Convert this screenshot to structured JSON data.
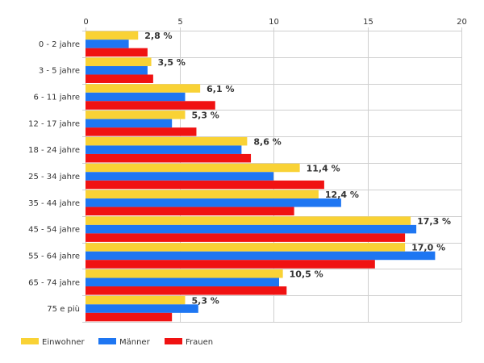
{
  "chart_data": {
    "type": "bar",
    "orientation": "horizontal",
    "title": "",
    "xlabel": "",
    "ylabel": "",
    "xlim": [
      0,
      20
    ],
    "x_ticks": [
      "0",
      "5",
      "10",
      "15",
      "20"
    ],
    "grid": true,
    "legend_position": "bottom-left",
    "categories": [
      "0 - 2 jahre",
      "3 - 5 jahre",
      "6 - 11 jahre",
      "12 - 17 jahre",
      "18 - 24 jahre",
      "25 - 34 jahre",
      "35 - 44 jahre",
      "45 - 54 jahre",
      "55 - 64 jahre",
      "65 - 74 jahre",
      "75 e più"
    ],
    "series": [
      {
        "name": "Einwohner",
        "color": "#f9d235",
        "values": [
          2.8,
          3.5,
          6.1,
          5.3,
          8.6,
          11.4,
          12.4,
          17.3,
          17.0,
          10.5,
          5.3
        ],
        "labels": [
          "2,8 %",
          "3,5 %",
          "6,1 %",
          "5,3 %",
          "8,6 %",
          "11,4 %",
          "12,4 %",
          "17,3 %",
          "17,0 %",
          "10,5 %",
          "5,3 %"
        ]
      },
      {
        "name": "Männer",
        "color": "#1e76f2",
        "values": [
          2.3,
          3.3,
          5.3,
          4.6,
          8.3,
          10.0,
          13.6,
          17.6,
          18.6,
          10.3,
          6.0
        ]
      },
      {
        "name": "Frauen",
        "color": "#f01212",
        "values": [
          3.3,
          3.6,
          6.9,
          5.9,
          8.8,
          12.7,
          11.1,
          17.0,
          15.4,
          10.7,
          4.6
        ]
      }
    ]
  }
}
